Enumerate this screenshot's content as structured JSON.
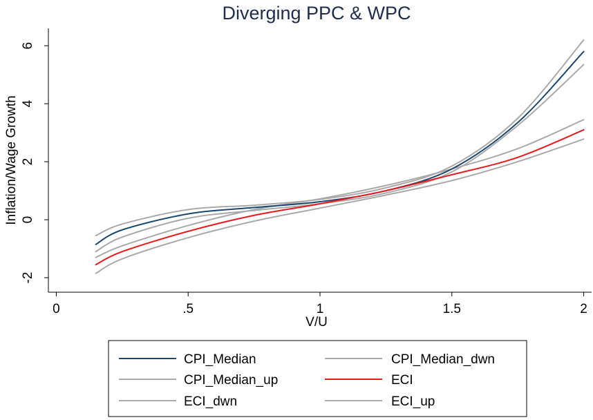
{
  "chart_data": {
    "type": "line",
    "title": "Diverging PPC & WPC",
    "xlabel": "V/U",
    "ylabel": "Inflation/Wage Growth",
    "xlim": [
      -0.03,
      2.03
    ],
    "ylim": [
      -2.5,
      6.6
    ],
    "xticks": [
      0,
      0.5,
      1,
      1.5,
      2
    ],
    "xtick_labels": [
      "0",
      ".5",
      "1",
      "1.5",
      "2"
    ],
    "yticks": [
      -2,
      0,
      2,
      4,
      6
    ],
    "ytick_labels": [
      "-2",
      "0",
      "2",
      "4",
      "6"
    ],
    "grid": false,
    "legend_position": "bottom",
    "x": [
      0.15,
      0.25,
      0.5,
      0.75,
      1.0,
      1.25,
      1.5,
      1.75,
      2.0
    ],
    "series": [
      {
        "name": "CPI_Median",
        "color": "#1a476f",
        "values": [
          -0.85,
          -0.35,
          0.2,
          0.42,
          0.62,
          1.0,
          1.75,
          3.35,
          5.8
        ]
      },
      {
        "name": "CPI_Median_dwn",
        "color": "#a9a9a9",
        "values": [
          -1.1,
          -0.6,
          0.05,
          0.32,
          0.55,
          0.92,
          1.65,
          3.25,
          5.35
        ]
      },
      {
        "name": "CPI_Median_up",
        "color": "#a9a9a9",
        "values": [
          -0.55,
          -0.15,
          0.35,
          0.5,
          0.7,
          1.1,
          1.85,
          3.5,
          6.2
        ]
      },
      {
        "name": "ECI",
        "color": "#e8191b",
        "values": [
          -1.55,
          -1.1,
          -0.4,
          0.15,
          0.55,
          1.0,
          1.55,
          2.15,
          3.1
        ]
      },
      {
        "name": "ECI_dwn",
        "color": "#a9a9a9",
        "values": [
          -1.85,
          -1.35,
          -0.62,
          -0.05,
          0.4,
          0.85,
          1.35,
          2.0,
          2.78
        ]
      },
      {
        "name": "ECI_up",
        "color": "#a9a9a9",
        "values": [
          -1.3,
          -0.9,
          -0.2,
          0.35,
          0.72,
          1.18,
          1.75,
          2.45,
          3.45
        ]
      }
    ]
  }
}
